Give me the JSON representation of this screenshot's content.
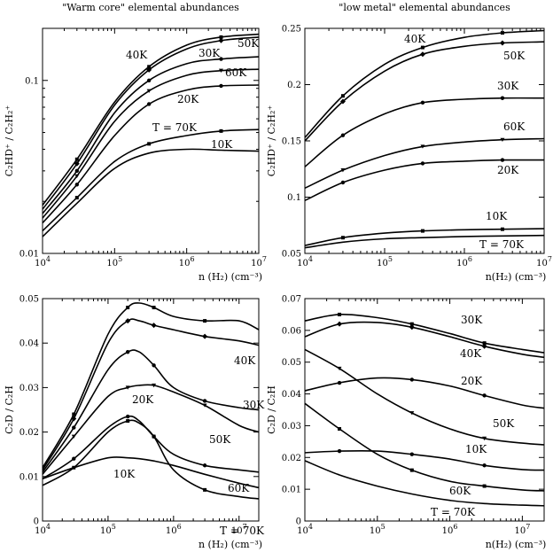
{
  "chart_data": [
    {
      "type": "line",
      "title": "\"Warm core\" elemental abundances",
      "xlabel": "n (H₂) (cm⁻³)",
      "ylabel": "C₂HD⁺ / C₂H₂⁺",
      "xscale": "log",
      "yscale": "log",
      "xlim": [
        10000,
        10000000
      ],
      "ylim": [
        0.01,
        0.2
      ],
      "x_ticks": [
        "10⁴",
        "10⁵",
        "10⁶",
        "10⁷"
      ],
      "y_ticks": [
        "0.01",
        "0.1"
      ],
      "series": [
        {
          "name": "40K",
          "x": [
            10000,
            30000,
            100000,
            300000,
            1000000,
            3000000,
            10000000
          ],
          "y": [
            0.019,
            0.035,
            0.075,
            0.12,
            0.16,
            0.178,
            0.185
          ]
        },
        {
          "name": "50K",
          "x": [
            10000,
            30000,
            100000,
            300000,
            1000000,
            3000000,
            10000000
          ],
          "y": [
            0.018,
            0.033,
            0.072,
            0.115,
            0.152,
            0.17,
            0.178
          ]
        },
        {
          "name": "30K",
          "x": [
            10000,
            30000,
            100000,
            300000,
            1000000,
            3000000,
            10000000
          ],
          "y": [
            0.017,
            0.03,
            0.065,
            0.1,
            0.125,
            0.133,
            0.137
          ]
        },
        {
          "name": "60K",
          "x": [
            10000,
            30000,
            100000,
            300000,
            1000000,
            3000000,
            10000000
          ],
          "y": [
            0.016,
            0.028,
            0.058,
            0.087,
            0.107,
            0.114,
            0.116
          ]
        },
        {
          "name": "20K",
          "x": [
            10000,
            30000,
            100000,
            300000,
            1000000,
            3000000,
            10000000
          ],
          "y": [
            0.015,
            0.025,
            0.048,
            0.073,
            0.088,
            0.093,
            0.094
          ]
        },
        {
          "name": "T = 70K",
          "x": [
            10000,
            30000,
            100000,
            300000,
            1000000,
            3000000,
            10000000
          ],
          "y": [
            0.0135,
            0.021,
            0.034,
            0.043,
            0.048,
            0.051,
            0.052
          ]
        },
        {
          "name": "10K",
          "x": [
            10000,
            30000,
            100000,
            300000,
            1000000,
            3000000,
            10000000
          ],
          "y": [
            0.0125,
            0.0195,
            0.031,
            0.038,
            0.04,
            0.0395,
            0.039
          ]
        }
      ]
    },
    {
      "type": "line",
      "title": "\"low metal\" elemental abundances",
      "xlabel": "n(H₂) (cm⁻³)",
      "ylabel": "C₂HD⁺ / C₂H₂⁺",
      "xscale": "log",
      "yscale": "linear",
      "xlim": [
        10000,
        10000000
      ],
      "ylim": [
        0.05,
        0.25
      ],
      "x_ticks": [
        "10⁴",
        "10⁵",
        "10⁶",
        "10⁷"
      ],
      "y_ticks": [
        "0.05",
        "0.1",
        "0.15",
        "0.2",
        "0.25"
      ],
      "series": [
        {
          "name": "40K",
          "x": [
            10000,
            30000,
            100000,
            300000,
            1000000,
            3000000,
            10000000
          ],
          "y": [
            0.153,
            0.19,
            0.218,
            0.233,
            0.242,
            0.246,
            0.248
          ]
        },
        {
          "name": "50K",
          "x": [
            10000,
            30000,
            100000,
            300000,
            1000000,
            3000000,
            10000000
          ],
          "y": [
            0.15,
            0.185,
            0.212,
            0.227,
            0.234,
            0.237,
            0.238
          ]
        },
        {
          "name": "30K",
          "x": [
            10000,
            30000,
            100000,
            300000,
            1000000,
            3000000,
            10000000
          ],
          "y": [
            0.127,
            0.155,
            0.174,
            0.184,
            0.187,
            0.188,
            0.188
          ]
        },
        {
          "name": "60K",
          "x": [
            10000,
            30000,
            100000,
            300000,
            1000000,
            3000000,
            10000000
          ],
          "y": [
            0.108,
            0.124,
            0.137,
            0.145,
            0.149,
            0.151,
            0.152
          ]
        },
        {
          "name": "20K",
          "x": [
            10000,
            30000,
            100000,
            300000,
            1000000,
            3000000,
            10000000
          ],
          "y": [
            0.097,
            0.113,
            0.124,
            0.13,
            0.132,
            0.133,
            0.133
          ]
        },
        {
          "name": "10K",
          "x": [
            10000,
            30000,
            100000,
            300000,
            1000000,
            3000000,
            10000000
          ],
          "y": [
            0.057,
            0.064,
            0.068,
            0.07,
            0.071,
            0.0715,
            0.072
          ]
        },
        {
          "name": "T = 70K",
          "x": [
            10000,
            30000,
            100000,
            300000,
            1000000,
            3000000,
            10000000
          ],
          "y": [
            0.055,
            0.06,
            0.063,
            0.064,
            0.065,
            0.0655,
            0.066
          ]
        }
      ]
    },
    {
      "type": "line",
      "title": "",
      "xlabel": "n (H₂) (cm⁻³)",
      "ylabel": "C₂D / C₂H",
      "xscale": "log",
      "yscale": "linear",
      "xlim": [
        10000,
        20000000
      ],
      "ylim": [
        0,
        0.05
      ],
      "x_ticks": [
        "10⁴",
        "10⁵",
        "10⁶",
        "10⁷"
      ],
      "y_ticks": [
        "0",
        "0.01",
        "0.02",
        "0.03",
        "0.04",
        "0.05"
      ],
      "series": [
        {
          "name": "40K",
          "x": [
            10000,
            30000,
            100000,
            200000,
            300000,
            500000,
            1000000,
            3000000,
            10000000,
            20000000
          ],
          "y": [
            0.012,
            0.024,
            0.042,
            0.048,
            0.049,
            0.048,
            0.046,
            0.045,
            0.045,
            0.043
          ]
        },
        {
          "name": "30K",
          "x": [
            10000,
            30000,
            100000,
            200000,
            300000,
            500000,
            1000000,
            3000000,
            10000000,
            20000000
          ],
          "y": [
            0.0115,
            0.023,
            0.04,
            0.045,
            0.045,
            0.044,
            0.043,
            0.0415,
            0.0405,
            0.0395
          ]
        },
        {
          "name": "50K",
          "x": [
            10000,
            30000,
            100000,
            200000,
            300000,
            500000,
            1000000,
            3000000,
            10000000,
            20000000
          ],
          "y": [
            0.011,
            0.021,
            0.034,
            0.038,
            0.038,
            0.035,
            0.03,
            0.027,
            0.0255,
            0.025
          ]
        },
        {
          "name": "20K",
          "x": [
            10000,
            30000,
            100000,
            200000,
            300000,
            500000,
            1000000,
            3000000,
            10000000,
            20000000
          ],
          "y": [
            0.0105,
            0.019,
            0.028,
            0.03,
            0.0305,
            0.0305,
            0.029,
            0.026,
            0.0215,
            0.02
          ]
        },
        {
          "name": "60K",
          "x": [
            10000,
            30000,
            100000,
            200000,
            300000,
            500000,
            1000000,
            3000000,
            10000000,
            20000000
          ],
          "y": [
            0.0095,
            0.014,
            0.021,
            0.0235,
            0.0225,
            0.019,
            0.015,
            0.0125,
            0.0115,
            0.011
          ]
        },
        {
          "name": "T = 70K",
          "x": [
            10000,
            30000,
            100000,
            200000,
            300000,
            500000,
            1000000,
            3000000,
            10000000,
            20000000
          ],
          "y": [
            0.008,
            0.012,
            0.02,
            0.0225,
            0.022,
            0.019,
            0.0115,
            0.007,
            0.0055,
            0.005
          ]
        },
        {
          "name": "10K",
          "x": [
            10000,
            30000,
            100000,
            200000,
            300000,
            500000,
            1000000,
            3000000,
            10000000,
            20000000
          ],
          "y": [
            0.0095,
            0.012,
            0.0142,
            0.0142,
            0.014,
            0.0135,
            0.0125,
            0.0105,
            0.0085,
            0.0075
          ]
        }
      ]
    },
    {
      "type": "line",
      "title": "",
      "xlabel": "n(H₂) (cm⁻³)",
      "ylabel": "C₂D / C₂H",
      "xscale": "log",
      "yscale": "linear",
      "xlim": [
        10000,
        20000000
      ],
      "ylim": [
        0,
        0.07
      ],
      "x_ticks": [
        "10⁴",
        "10⁵",
        "10⁶",
        "10⁷"
      ],
      "y_ticks": [
        "0",
        "0.01",
        "0.02",
        "0.03",
        "0.04",
        "0.05",
        "0.06",
        "0.07"
      ],
      "series": [
        {
          "name": "30K",
          "x": [
            10000,
            30000,
            100000,
            300000,
            1000000,
            3000000,
            10000000,
            20000000
          ],
          "y": [
            0.063,
            0.065,
            0.064,
            0.062,
            0.059,
            0.056,
            0.054,
            0.053
          ]
        },
        {
          "name": "40K",
          "x": [
            10000,
            30000,
            100000,
            300000,
            1000000,
            3000000,
            10000000,
            20000000
          ],
          "y": [
            0.058,
            0.062,
            0.0625,
            0.061,
            0.058,
            0.055,
            0.0525,
            0.0515
          ]
        },
        {
          "name": "20K",
          "x": [
            10000,
            30000,
            100000,
            300000,
            1000000,
            3000000,
            10000000,
            20000000
          ],
          "y": [
            0.041,
            0.0435,
            0.045,
            0.0445,
            0.0425,
            0.0395,
            0.0365,
            0.0355
          ]
        },
        {
          "name": "50K",
          "x": [
            10000,
            30000,
            100000,
            300000,
            1000000,
            3000000,
            10000000,
            20000000
          ],
          "y": [
            0.054,
            0.048,
            0.04,
            0.034,
            0.029,
            0.026,
            0.0245,
            0.024
          ]
        },
        {
          "name": "10K",
          "x": [
            10000,
            30000,
            100000,
            300000,
            1000000,
            3000000,
            10000000,
            20000000
          ],
          "y": [
            0.0215,
            0.022,
            0.022,
            0.021,
            0.0195,
            0.0175,
            0.0162,
            0.016
          ]
        },
        {
          "name": "60K",
          "x": [
            10000,
            30000,
            100000,
            300000,
            1000000,
            3000000,
            10000000,
            20000000
          ],
          "y": [
            0.037,
            0.029,
            0.021,
            0.016,
            0.0125,
            0.011,
            0.0098,
            0.0095
          ]
        },
        {
          "name": "T = 70K",
          "x": [
            10000,
            30000,
            100000,
            300000,
            1000000,
            3000000,
            10000000,
            20000000
          ],
          "y": [
            0.019,
            0.0145,
            0.011,
            0.0085,
            0.0065,
            0.0055,
            0.005,
            0.0048
          ]
        }
      ]
    }
  ]
}
